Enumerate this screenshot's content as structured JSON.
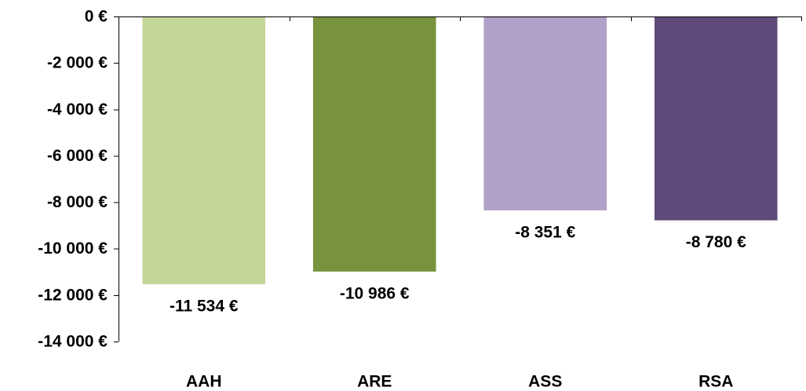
{
  "chart_data": {
    "type": "bar",
    "categories": [
      "AAH",
      "ARE",
      "ASS",
      "RSA"
    ],
    "values": [
      -11534,
      -10986,
      -8351,
      -8780
    ],
    "data_labels": [
      "-11 534 €",
      "-10 986 €",
      "-8 351 €",
      "-8 780 €"
    ],
    "ylim": [
      -14000,
      0
    ],
    "y_ticks": [
      0,
      -2000,
      -4000,
      -6000,
      -8000,
      -10000,
      -12000,
      -14000
    ],
    "y_tick_labels": [
      "0 €",
      "-2 000 €",
      "-4 000 €",
      "-6 000 €",
      "-8 000 €",
      "-10 000 €",
      "-12 000 €",
      "-14 000 €"
    ],
    "colors": [
      "#c4d79b",
      "#77933c",
      "#b1a0c7",
      "#604a7b"
    ],
    "title": "",
    "xlabel": "",
    "ylabel": "",
    "grid": false,
    "legend": "none"
  }
}
